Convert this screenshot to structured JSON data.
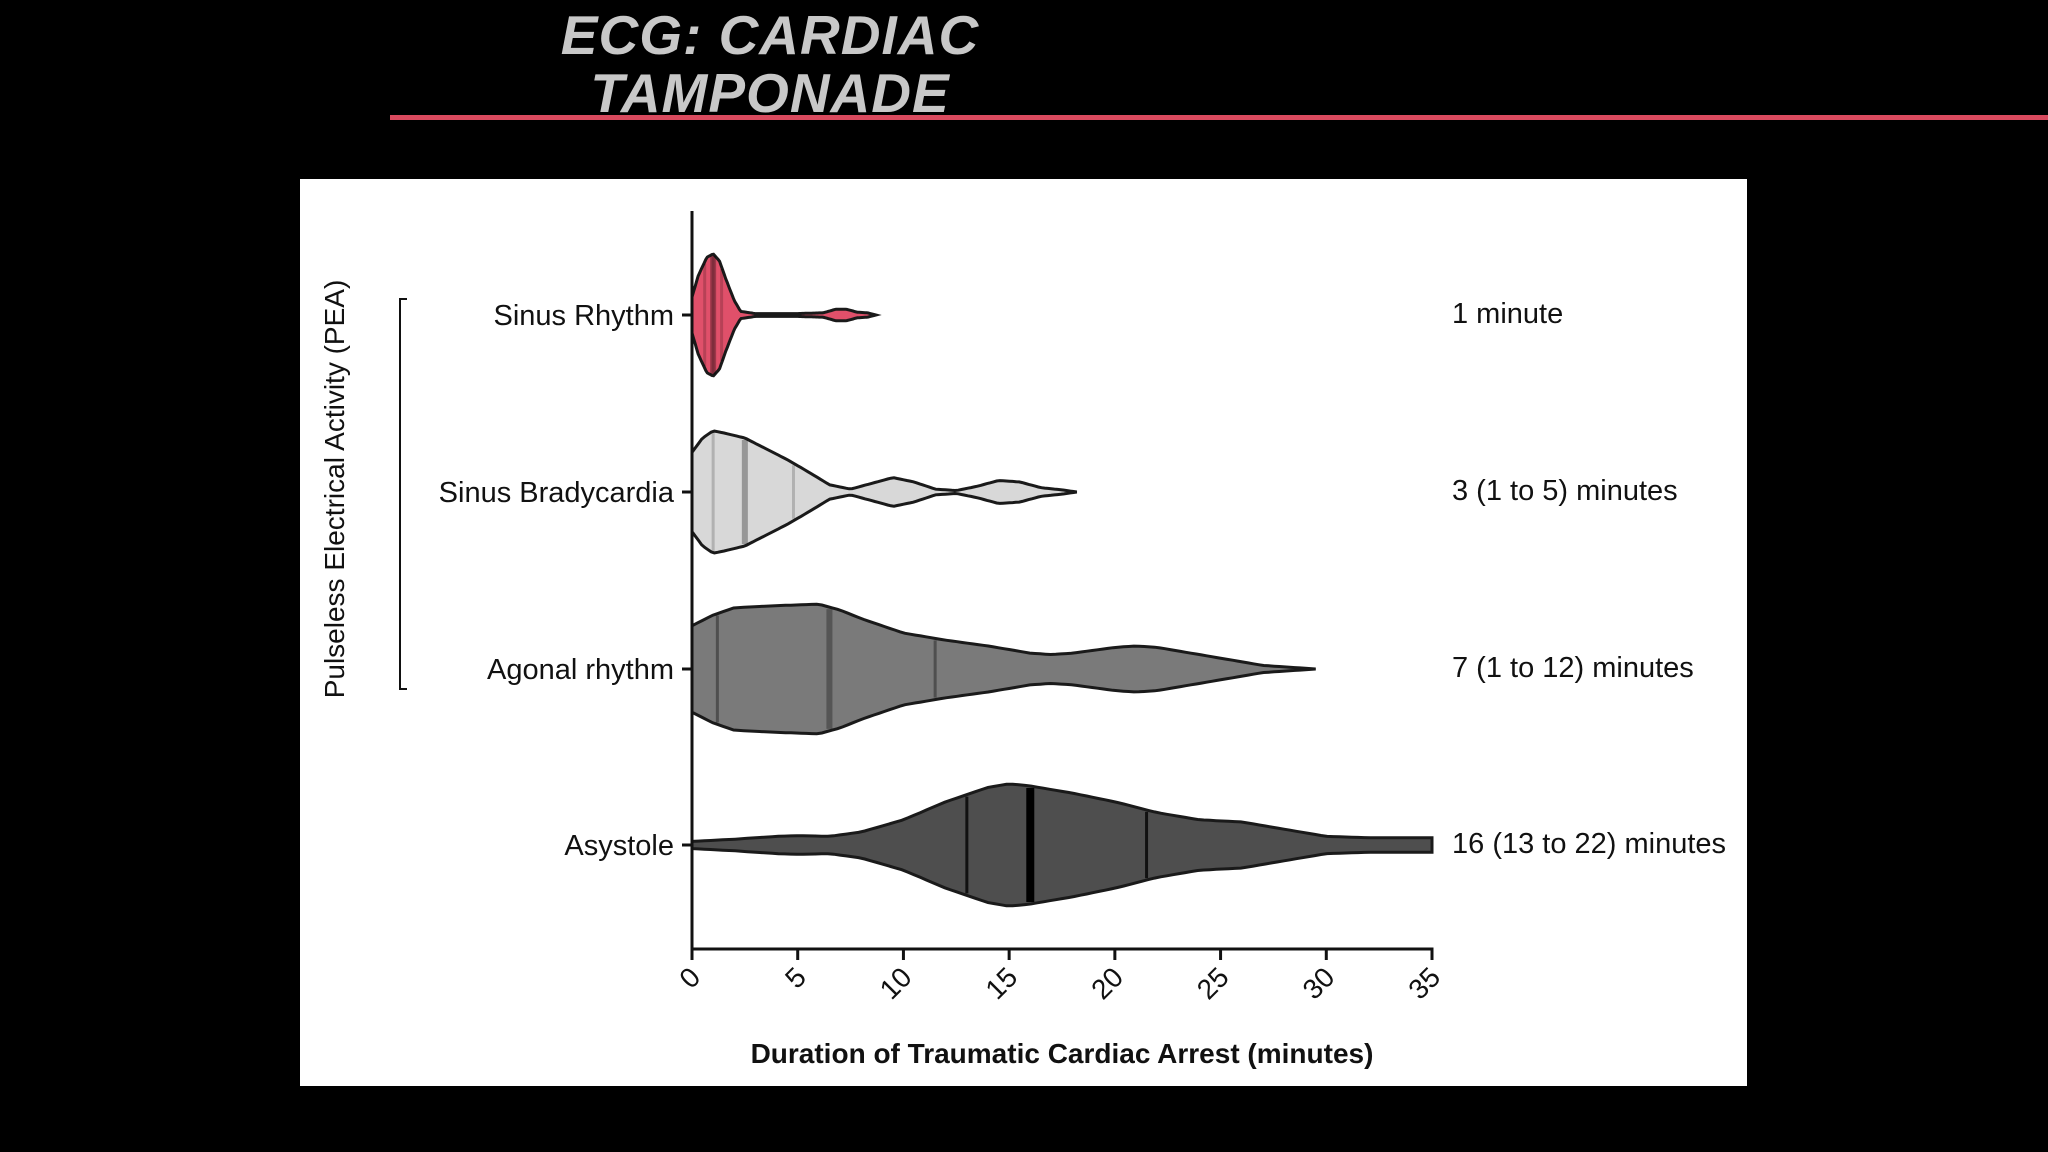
{
  "slide": {
    "title_line1": "ECG: CARDIAC",
    "title_line2": "TAMPONADE",
    "accent_color": "#d94a5e"
  },
  "chart_data": {
    "type": "violin",
    "orientation": "horizontal",
    "xlabel": "Duration of Traumatic Cardiac Arrest (minutes)",
    "ylabel": "",
    "bracket_label": "Pulseless Electrical Activity (PEA)",
    "xlim": [
      0,
      35
    ],
    "x_ticks": [
      "0",
      "5",
      "10",
      "15",
      "20",
      "25",
      "30",
      "35"
    ],
    "grid": false,
    "categories": [
      "Sinus Rhythm",
      "Sinus Bradycardia",
      "Agonal rhythm",
      "Asystole"
    ],
    "series": [
      {
        "name": "Sinus Rhythm",
        "color": "#e0506a",
        "annotation": "1 minute",
        "min": 0,
        "max": 8.7,
        "quartile_lines": [
          0.6,
          1.0,
          1.4
        ],
        "median_line": 1.0,
        "density": [
          [
            0,
            0.25
          ],
          [
            0.3,
            0.55
          ],
          [
            0.7,
            0.8
          ],
          [
            1.0,
            0.85
          ],
          [
            1.3,
            0.75
          ],
          [
            1.6,
            0.5
          ],
          [
            2.0,
            0.2
          ],
          [
            2.3,
            0.05
          ],
          [
            3,
            0.02
          ],
          [
            5,
            0.02
          ],
          [
            6.2,
            0.03
          ],
          [
            6.8,
            0.08
          ],
          [
            7.3,
            0.08
          ],
          [
            7.8,
            0.04
          ],
          [
            8.3,
            0.03
          ],
          [
            8.7,
            0.0
          ]
        ]
      },
      {
        "name": "Sinus Bradycardia",
        "color": "#d8d8d8",
        "annotation": "3 (1 to 5) minutes",
        "min": 0,
        "max": 18.2,
        "quartile_lines": [
          1.0,
          4.8
        ],
        "median_line": 2.5,
        "density": [
          [
            0,
            0.55
          ],
          [
            0.5,
            0.75
          ],
          [
            1,
            0.85
          ],
          [
            1.5,
            0.82
          ],
          [
            2.5,
            0.75
          ],
          [
            3.5,
            0.6
          ],
          [
            4.5,
            0.45
          ],
          [
            5.5,
            0.28
          ],
          [
            6.5,
            0.1
          ],
          [
            7.5,
            0.04
          ],
          [
            8.5,
            0.12
          ],
          [
            9.5,
            0.2
          ],
          [
            10.5,
            0.14
          ],
          [
            11.5,
            0.04
          ],
          [
            12.5,
            0.02
          ],
          [
            13.5,
            0.08
          ],
          [
            14.5,
            0.16
          ],
          [
            15.5,
            0.14
          ],
          [
            16.5,
            0.06
          ],
          [
            17.5,
            0.03
          ],
          [
            18.2,
            0.0
          ]
        ]
      },
      {
        "name": "Agonal rhythm",
        "color": "#7a7a7a",
        "annotation": "7 (1 to 12) minutes",
        "min": 0,
        "max": 29.5,
        "quartile_lines": [
          1.2,
          11.5
        ],
        "median_line": 6.5,
        "density": [
          [
            0,
            0.6
          ],
          [
            1,
            0.75
          ],
          [
            2,
            0.85
          ],
          [
            4,
            0.88
          ],
          [
            6,
            0.9
          ],
          [
            7,
            0.82
          ],
          [
            8,
            0.7
          ],
          [
            10,
            0.5
          ],
          [
            12,
            0.4
          ],
          [
            14,
            0.32
          ],
          [
            16,
            0.22
          ],
          [
            17,
            0.2
          ],
          [
            18,
            0.22
          ],
          [
            20,
            0.3
          ],
          [
            21,
            0.32
          ],
          [
            22,
            0.3
          ],
          [
            24,
            0.2
          ],
          [
            26,
            0.1
          ],
          [
            27,
            0.05
          ],
          [
            28,
            0.03
          ],
          [
            29.5,
            0.0
          ]
        ]
      },
      {
        "name": "Asystole",
        "color": "#4e4e4e",
        "annotation": "16 (13 to 22) minutes",
        "min": 0,
        "max": 35,
        "quartile_lines": [
          13.0,
          21.5
        ],
        "median_line": 16.0,
        "density": [
          [
            0,
            0.05
          ],
          [
            2,
            0.08
          ],
          [
            4,
            0.12
          ],
          [
            5,
            0.13
          ],
          [
            6.5,
            0.12
          ],
          [
            8,
            0.18
          ],
          [
            10,
            0.35
          ],
          [
            12,
            0.6
          ],
          [
            14,
            0.8
          ],
          [
            15,
            0.85
          ],
          [
            16,
            0.82
          ],
          [
            18,
            0.72
          ],
          [
            20,
            0.6
          ],
          [
            22,
            0.45
          ],
          [
            24,
            0.35
          ],
          [
            26,
            0.32
          ],
          [
            28,
            0.22
          ],
          [
            30,
            0.12
          ],
          [
            32,
            0.1
          ],
          [
            34,
            0.1
          ],
          [
            35,
            0.1
          ]
        ]
      }
    ]
  }
}
